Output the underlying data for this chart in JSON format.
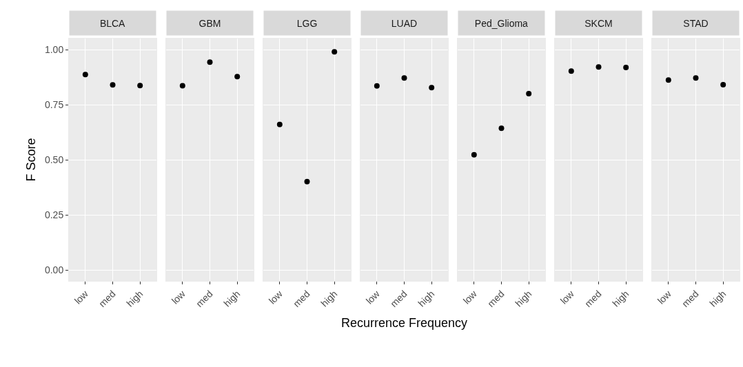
{
  "chart_data": [
    {
      "type": "scatter",
      "title": "BLCA",
      "ylabel": "F Score",
      "categories": [
        "low",
        "med",
        "high"
      ],
      "values": [
        0.887,
        0.84,
        0.837
      ],
      "color": "#000000",
      "marker": "circle",
      "ylim": [
        -0.05,
        1.05
      ],
      "yticks": [
        {
          "value": 0,
          "label": "0.00"
        },
        {
          "value": 0.25,
          "label": "0.25"
        },
        {
          "value": 0.5,
          "label": "0.50"
        },
        {
          "value": 0.75,
          "label": "0.75"
        },
        {
          "value": 1,
          "label": "1.00"
        }
      ],
      "grid": true
    },
    {
      "type": "scatter",
      "title": "GBM",
      "categories": [
        "low",
        "med",
        "high"
      ],
      "values": [
        0.836,
        0.943,
        0.877
      ],
      "color": "#000000",
      "marker": "circle",
      "ylim": [
        -0.05,
        1.05
      ],
      "yticks": [
        {
          "value": 0,
          "label": null
        },
        {
          "value": 0.25,
          "label": null
        },
        {
          "value": 0.5,
          "label": null
        },
        {
          "value": 0.75,
          "label": null
        },
        {
          "value": 1,
          "label": null
        }
      ],
      "grid": true,
      "tick_labels": "x"
    },
    {
      "type": "scatter",
      "title": "LGG",
      "categories": [
        "low",
        "med",
        "high"
      ],
      "values": [
        0.66,
        0.401,
        0.99
      ],
      "color": "#000000",
      "marker": "circle",
      "ylim": [
        -0.05,
        1.05
      ],
      "yticks": [
        {
          "value": 0,
          "label": null
        },
        {
          "value": 0.25,
          "label": null
        },
        {
          "value": 0.5,
          "label": null
        },
        {
          "value": 0.75,
          "label": null
        },
        {
          "value": 1,
          "label": null
        }
      ],
      "grid": true,
      "tick_labels": "x"
    },
    {
      "type": "scatter",
      "title": "LUAD",
      "xlabel": "Recurrence Frequency",
      "categories": [
        "low",
        "med",
        "high"
      ],
      "values": [
        0.835,
        0.871,
        0.827
      ],
      "color": "#000000",
      "marker": "circle",
      "ylim": [
        -0.05,
        1.05
      ],
      "yticks": [
        {
          "value": 0,
          "label": null
        },
        {
          "value": 0.25,
          "label": null
        },
        {
          "value": 0.5,
          "label": null
        },
        {
          "value": 0.75,
          "label": null
        },
        {
          "value": 1,
          "label": null
        }
      ],
      "grid": true,
      "tick_labels": "x"
    },
    {
      "type": "scatter",
      "title": "Ped_Glioma",
      "categories": [
        "low",
        "med",
        "high"
      ],
      "values": [
        0.523,
        0.643,
        0.8
      ],
      "color": "#000000",
      "marker": "circle",
      "ylim": [
        -0.05,
        1.05
      ],
      "yticks": [
        {
          "value": 0,
          "label": null
        },
        {
          "value": 0.25,
          "label": null
        },
        {
          "value": 0.5,
          "label": null
        },
        {
          "value": 0.75,
          "label": null
        },
        {
          "value": 1,
          "label": null
        }
      ],
      "grid": true,
      "tick_labels": "x"
    },
    {
      "type": "scatter",
      "title": "SKCM",
      "categories": [
        "low",
        "med",
        "high"
      ],
      "values": [
        0.902,
        0.921,
        0.919
      ],
      "color": "#000000",
      "marker": "circle",
      "ylim": [
        -0.05,
        1.05
      ],
      "yticks": [
        {
          "value": 0,
          "label": null
        },
        {
          "value": 0.25,
          "label": null
        },
        {
          "value": 0.5,
          "label": null
        },
        {
          "value": 0.75,
          "label": null
        },
        {
          "value": 1,
          "label": null
        }
      ],
      "grid": true,
      "tick_labels": "x"
    },
    {
      "type": "scatter",
      "title": "STAD",
      "categories": [
        "low",
        "med",
        "high"
      ],
      "values": [
        0.862,
        0.871,
        0.841
      ],
      "color": "#000000",
      "marker": "circle",
      "ylim": [
        -0.05,
        1.05
      ],
      "yticks": [
        {
          "value": 0,
          "label": null
        },
        {
          "value": 0.25,
          "label": null
        },
        {
          "value": 0.5,
          "label": null
        },
        {
          "value": 0.75,
          "label": null
        },
        {
          "value": 1,
          "label": null
        }
      ],
      "grid": true,
      "tick_labels": "x"
    }
  ]
}
